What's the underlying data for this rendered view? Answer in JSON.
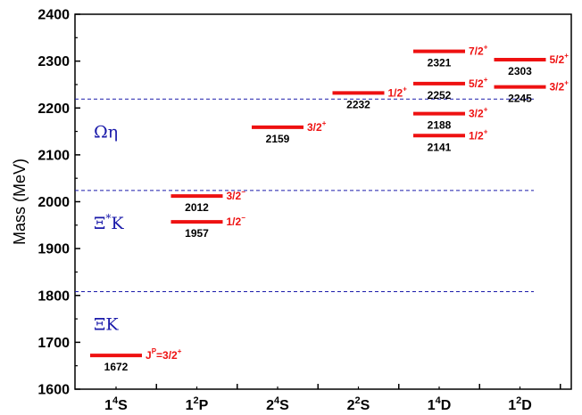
{
  "chart_data": {
    "type": "level-diagram",
    "ylabel": "Mass (MeV)",
    "ylim": [
      1600,
      2400
    ],
    "yticks": [
      1600,
      1700,
      1800,
      1900,
      2000,
      2100,
      2200,
      2300,
      2400
    ],
    "categories": [
      {
        "main": "1",
        "sup": "4",
        "tail": "S"
      },
      {
        "main": "1",
        "sup": "2",
        "tail": "P"
      },
      {
        "main": "2",
        "sup": "4",
        "tail": "S"
      },
      {
        "main": "2",
        "sup": "2",
        "tail": "S"
      },
      {
        "main": "1",
        "sup": "4",
        "tail": "D"
      },
      {
        "main": "1",
        "sup": "2",
        "tail": "D"
      }
    ],
    "levels": [
      {
        "category": 0,
        "mass": 1672,
        "mass_label": "1672",
        "jp": {
          "pre": "J",
          "preSup": "P",
          "main": "=3/2",
          "sup": "+"
        }
      },
      {
        "category": 1,
        "mass": 1957,
        "mass_label": "1957",
        "jp": {
          "pre": "",
          "preSup": "",
          "main": "1/2",
          "sup": "−"
        }
      },
      {
        "category": 1,
        "mass": 2012,
        "mass_label": "2012",
        "jp": {
          "pre": "",
          "preSup": "",
          "main": "3/2",
          "sup": "−"
        }
      },
      {
        "category": 2,
        "mass": 2159,
        "mass_label": "2159",
        "jp": {
          "pre": "",
          "preSup": "",
          "main": "3/2",
          "sup": "+"
        }
      },
      {
        "category": 3,
        "mass": 2232,
        "mass_label": "2232",
        "jp": {
          "pre": "",
          "preSup": "",
          "main": "1/2",
          "sup": "+"
        }
      },
      {
        "category": 4,
        "mass": 2141,
        "mass_label": "2141",
        "jp": {
          "pre": "",
          "preSup": "",
          "main": "1/2",
          "sup": "+"
        }
      },
      {
        "category": 4,
        "mass": 2188,
        "mass_label": "2188",
        "jp": {
          "pre": "",
          "preSup": "",
          "main": "3/2",
          "sup": "+"
        }
      },
      {
        "category": 4,
        "mass": 2252,
        "mass_label": "2252",
        "jp": {
          "pre": "",
          "preSup": "",
          "main": "5/2",
          "sup": "+"
        }
      },
      {
        "category": 4,
        "mass": 2321,
        "mass_label": "2321",
        "jp": {
          "pre": "",
          "preSup": "",
          "main": "7/2",
          "sup": "+"
        }
      },
      {
        "category": 5,
        "mass": 2245,
        "mass_label": "2245",
        "jp": {
          "pre": "",
          "preSup": "",
          "main": "3/2",
          "sup": "+"
        }
      },
      {
        "category": 5,
        "mass": 2303,
        "mass_label": "2303",
        "jp": {
          "pre": "",
          "preSup": "",
          "main": "5/2",
          "sup": "+"
        }
      }
    ],
    "thresholds": [
      {
        "name": "ΞK",
        "main": "ΞK",
        "sup": "",
        "tail": "",
        "mass": 1808
      },
      {
        "name": "Ξ*K",
        "main": "Ξ",
        "sup": "*",
        "tail": "K",
        "mass": 2024
      },
      {
        "name": "Ωη",
        "main": "Ωη",
        "sup": "",
        "tail": "",
        "mass": 2219
      }
    ],
    "colors": {
      "level": "#ee1111",
      "jp": "#ee1111",
      "threshold": "#1a1aaa",
      "axis": "#000000"
    }
  }
}
